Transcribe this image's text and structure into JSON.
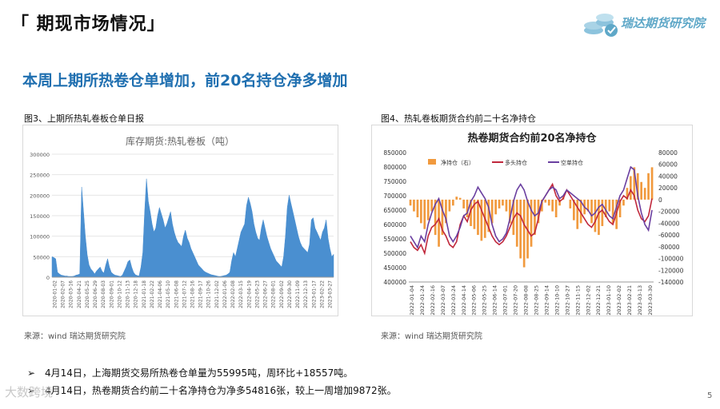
{
  "header": {
    "title": "「 期现市场情况」"
  },
  "logo": {
    "text": "瑞达期货研究院",
    "icon": "coin-stack-icon",
    "color": "#5fa8c8"
  },
  "headline": "本周上期所热卷仓单增加，前20名持仓净多增加",
  "left_panel": {
    "caption": "图3、上期所热轧卷板仓单日报",
    "source": "来源：wind   瑞达期货研究院"
  },
  "right_panel": {
    "caption": "图4、热轧卷板期货合约前二十名净持仓",
    "source": "来源：wind   瑞达期货研究院"
  },
  "bullets": [
    "4月14日，上海期货交易所热卷仓单量为55995吨，周环比+18557吨。",
    "4月14日，热卷期货合约前二十名净持仓为净多54816张，较上一周增加9872张。"
  ],
  "page_number": "5",
  "watermark": "大数跨境",
  "chart_data": [
    {
      "type": "area",
      "title": "库存期货:热轧卷板（吨）",
      "color": "#4a8fd0",
      "ylim": [
        0,
        300000
      ],
      "y_ticks": [
        "0",
        "50000",
        "100000",
        "150000",
        "200000",
        "250000",
        "300000"
      ],
      "x_tick_labels": [
        "2020-01-02",
        "2020-02-07",
        "2020-03-16",
        "2020-04-21",
        "2020-05-25",
        "2020-06-29",
        "2020-08-03",
        "2020-09-01",
        "2020-10-12",
        "2020-11-13",
        "2020-12-18",
        "2021-01-18",
        "2021-02-22",
        "2021-04-06",
        "2021-05-10",
        "2021-06-08",
        "2021-07-12",
        "2021-08-16",
        "2021-09-17",
        "2021-10-26",
        "2021-12-02",
        "2022-01-06",
        "2022-02-08",
        "2022-03-15",
        "2022-04-19",
        "2022-05-23",
        "2022-06-27",
        "2022-08-01",
        "2022-09-02",
        "2022-09-30",
        "2022-11-09",
        "2022-12-13",
        "2023-01-17",
        "2023-02-22",
        "2023-03-27"
      ],
      "values": [
        50000,
        48000,
        45000,
        12000,
        8000,
        5000,
        4000,
        3000,
        3000,
        2000,
        2000,
        2000,
        3000,
        5000,
        6000,
        8000,
        220000,
        160000,
        100000,
        55000,
        30000,
        20000,
        15000,
        8000,
        15000,
        20000,
        25000,
        15000,
        10000,
        30000,
        45000,
        25000,
        12000,
        8000,
        5000,
        4000,
        3000,
        2000,
        5000,
        15000,
        25000,
        38000,
        42000,
        25000,
        12000,
        6000,
        4000,
        3000,
        25000,
        60000,
        160000,
        240000,
        185000,
        160000,
        130000,
        110000,
        120000,
        150000,
        170000,
        155000,
        140000,
        120000,
        130000,
        145000,
        160000,
        130000,
        110000,
        95000,
        85000,
        80000,
        75000,
        100000,
        115000,
        95000,
        85000,
        70000,
        60000,
        50000,
        40000,
        30000,
        25000,
        20000,
        15000,
        12000,
        10000,
        8000,
        6000,
        5000,
        4000,
        3000,
        2000,
        2000,
        3000,
        4000,
        5000,
        8000,
        12000,
        40000,
        60000,
        50000,
        70000,
        90000,
        110000,
        120000,
        130000,
        175000,
        195000,
        180000,
        160000,
        130000,
        110000,
        95000,
        90000,
        120000,
        140000,
        120000,
        100000,
        85000,
        70000,
        60000,
        50000,
        40000,
        35000,
        30000,
        25000,
        50000,
        100000,
        170000,
        200000,
        180000,
        160000,
        140000,
        120000,
        100000,
        85000,
        75000,
        70000,
        65000,
        60000,
        80000,
        140000,
        145000,
        120000,
        110000,
        100000,
        90000,
        110000,
        120000,
        140000,
        95000,
        70000,
        50000,
        56000
      ]
    },
    {
      "type": "line",
      "title": "热卷期货合约前20名净持仓",
      "legend": [
        "净持仓（右）",
        "多头持仓",
        "空单持仓"
      ],
      "legend_position": "top",
      "colors": {
        "net": "#f19a3e",
        "long": "#c0283c",
        "short": "#6a3fa0"
      },
      "ylim": [
        400000,
        850000
      ],
      "y_ticks": [
        "400000",
        "450000",
        "500000",
        "550000",
        "600000",
        "650000",
        "700000",
        "750000",
        "800000",
        "850000"
      ],
      "y2lim": [
        -140000,
        80000
      ],
      "y2_ticks": [
        "80000",
        "60000",
        "40000",
        "20000",
        "0",
        "-20000",
        "-40000",
        "-60000",
        "-80000",
        "-100000",
        "-120000",
        "-140000"
      ],
      "x_tick_labels": [
        "2022-01-04",
        "2022-01-24",
        "2022-02-16",
        "2022-03-07",
        "2022-03-24",
        "2022-04-14",
        "2022-05-06",
        "2022-05-25",
        "2022-06-14",
        "2022-07-01",
        "2022-07-20",
        "2022-08-08",
        "2022-08-25",
        "2022-09-14",
        "2022-10-10",
        "2022-10-27",
        "2022-11-15",
        "2022-12-02",
        "2022-12-21",
        "2023-01-10",
        "2023-02-02",
        "2023-02-21",
        "2023-03-13",
        "2023-03-30"
      ],
      "net": [
        -10000,
        -20000,
        -30000,
        -40000,
        -50000,
        -35000,
        -20000,
        -60000,
        -80000,
        -60000,
        -40000,
        -20000,
        -10000,
        5000,
        3000,
        -15000,
        -30000,
        -45000,
        -50000,
        -60000,
        -70000,
        -65000,
        -55000,
        -40000,
        -25000,
        -15000,
        -10000,
        -20000,
        -40000,
        -60000,
        -80000,
        -100000,
        -115000,
        -100000,
        -80000,
        -60000,
        -40000,
        -20000,
        -5000,
        -10000,
        -20000,
        -30000,
        -10000,
        5000,
        0,
        -15000,
        -35000,
        -50000,
        -40000,
        -25000,
        -20000,
        -40000,
        -55000,
        -60000,
        -45000,
        -30000,
        -20000,
        -40000,
        -50000,
        -30000,
        -10000,
        20000,
        40000,
        55000,
        45000,
        30000,
        20000,
        45000,
        55000
      ],
      "long": [
        540000,
        520000,
        510000,
        530000,
        500000,
        560000,
        590000,
        600000,
        620000,
        580000,
        560000,
        530000,
        520000,
        540000,
        600000,
        630000,
        610000,
        650000,
        670000,
        680000,
        650000,
        620000,
        590000,
        560000,
        540000,
        530000,
        540000,
        560000,
        590000,
        620000,
        640000,
        630000,
        600000,
        580000,
        560000,
        570000,
        620000,
        680000,
        700000,
        720000,
        740000,
        700000,
        680000,
        690000,
        720000,
        700000,
        680000,
        660000,
        640000,
        620000,
        600000,
        590000,
        610000,
        640000,
        650000,
        630000,
        610000,
        600000,
        640000,
        680000,
        700000,
        690000,
        720000,
        700000,
        650000,
        620000,
        610000,
        630000,
        690000
      ],
      "short": [
        560000,
        540000,
        520000,
        560000,
        540000,
        600000,
        640000,
        670000,
        690000,
        650000,
        620000,
        560000,
        540000,
        560000,
        590000,
        630000,
        640000,
        680000,
        700000,
        730000,
        710000,
        690000,
        660000,
        600000,
        560000,
        540000,
        550000,
        570000,
        620000,
        680000,
        720000,
        740000,
        720000,
        680000,
        650000,
        630000,
        640000,
        680000,
        700000,
        720000,
        730000,
        720000,
        690000,
        700000,
        720000,
        710000,
        700000,
        690000,
        680000,
        660000,
        650000,
        630000,
        640000,
        660000,
        670000,
        650000,
        630000,
        620000,
        660000,
        700000,
        720000,
        760000,
        800000,
        790000,
        700000,
        640000,
        600000,
        580000,
        650000
      ]
    }
  ]
}
